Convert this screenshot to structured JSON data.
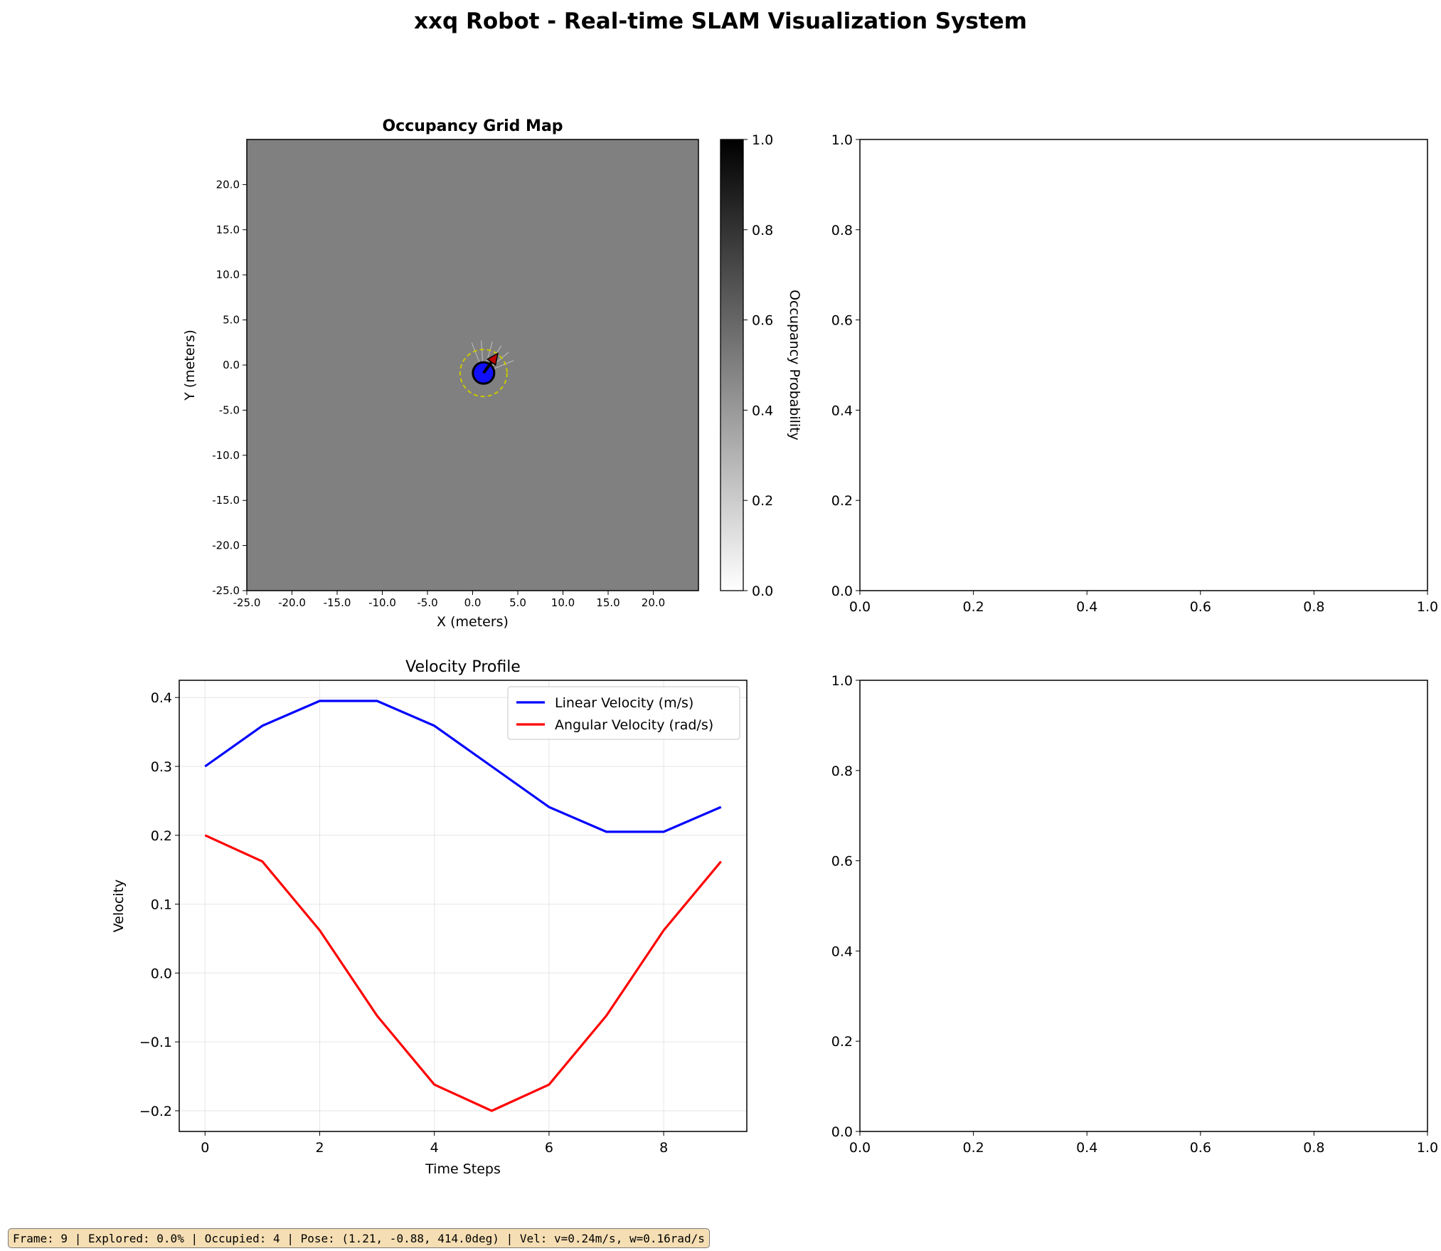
{
  "figure": {
    "title": "xxq Robot - Real-time SLAM Visualization System"
  },
  "status_bar": {
    "text": "Frame: 9 | Explored: 0.0% | Occupied: 4 | Pose: (1.21, -0.88, 414.0deg) | Vel: v=0.24m/s, w=0.16rad/s"
  },
  "colors": {
    "map_unknown": "#808080",
    "robot_fill": "#1010ff",
    "scan_color": "#c8c800",
    "linear": "#0000ff",
    "angular": "#ff0000",
    "status_bg": "#f5deb3"
  },
  "chart_data": [
    {
      "type": "heatmap",
      "title": "Occupancy Grid Map",
      "xlabel": "X (meters)",
      "ylabel": "Y (meters)",
      "xlim": [
        -25,
        25
      ],
      "ylim": [
        -25,
        25
      ],
      "xticks": [
        "-25.0",
        "-20.0",
        "-15.0",
        "-10.0",
        "-5.0",
        "0.0",
        "5.0",
        "10.0",
        "15.0",
        "20.0"
      ],
      "yticks": [
        "-25.0",
        "-20.0",
        "-15.0",
        "-10.0",
        "-5.0",
        "0.0",
        "5.0",
        "10.0",
        "15.0",
        "20.0"
      ],
      "uniform_value": 0.5,
      "robot": {
        "x": 1.21,
        "y": -0.88,
        "heading_deg": 414.0
      },
      "colorbar": {
        "label": "Occupancy Probability",
        "range": [
          0,
          1
        ],
        "ticks": [
          "0.0",
          "0.2",
          "0.4",
          "0.6",
          "0.8",
          "1.0"
        ]
      }
    },
    {
      "type": "line",
      "title": "",
      "xlim": [
        0,
        1
      ],
      "ylim": [
        0,
        1
      ],
      "xticks": [
        "0.0",
        "0.2",
        "0.4",
        "0.6",
        "0.8",
        "1.0"
      ],
      "yticks": [
        "0.0",
        "0.2",
        "0.4",
        "0.6",
        "0.8",
        "1.0"
      ],
      "series": []
    },
    {
      "type": "line",
      "title": "Velocity Profile",
      "xlabel": "Time Steps",
      "ylabel": "Velocity",
      "xlim": [
        -0.45,
        9.45
      ],
      "ylim": [
        -0.23,
        0.425
      ],
      "grid": true,
      "legend": "upper right",
      "x": [
        0,
        1,
        2,
        3,
        4,
        5,
        6,
        7,
        8,
        9
      ],
      "xticks": [
        "0",
        "2",
        "4",
        "6",
        "8"
      ],
      "xtick_values": [
        0,
        2,
        4,
        6,
        8
      ],
      "yticks": [
        "−0.2",
        "−0.1",
        "0.0",
        "0.1",
        "0.2",
        "0.3",
        "0.4"
      ],
      "ytick_values": [
        -0.2,
        -0.1,
        0.0,
        0.1,
        0.2,
        0.3,
        0.4
      ],
      "series": [
        {
          "name": "Linear Velocity (m/s)",
          "values": [
            0.3,
            0.359,
            0.395,
            0.395,
            0.359,
            0.3,
            0.241,
            0.205,
            0.205,
            0.241
          ]
        },
        {
          "name": "Angular Velocity (rad/s)",
          "values": [
            0.2,
            0.162,
            0.062,
            -0.062,
            -0.162,
            -0.2,
            -0.162,
            -0.062,
            0.062,
            0.162
          ]
        }
      ]
    },
    {
      "type": "line",
      "title": "",
      "xlim": [
        0,
        1
      ],
      "ylim": [
        0,
        1
      ],
      "xticks": [
        "0.0",
        "0.2",
        "0.4",
        "0.6",
        "0.8",
        "1.0"
      ],
      "yticks": [
        "0.0",
        "0.2",
        "0.4",
        "0.6",
        "0.8",
        "1.0"
      ],
      "series": []
    }
  ]
}
